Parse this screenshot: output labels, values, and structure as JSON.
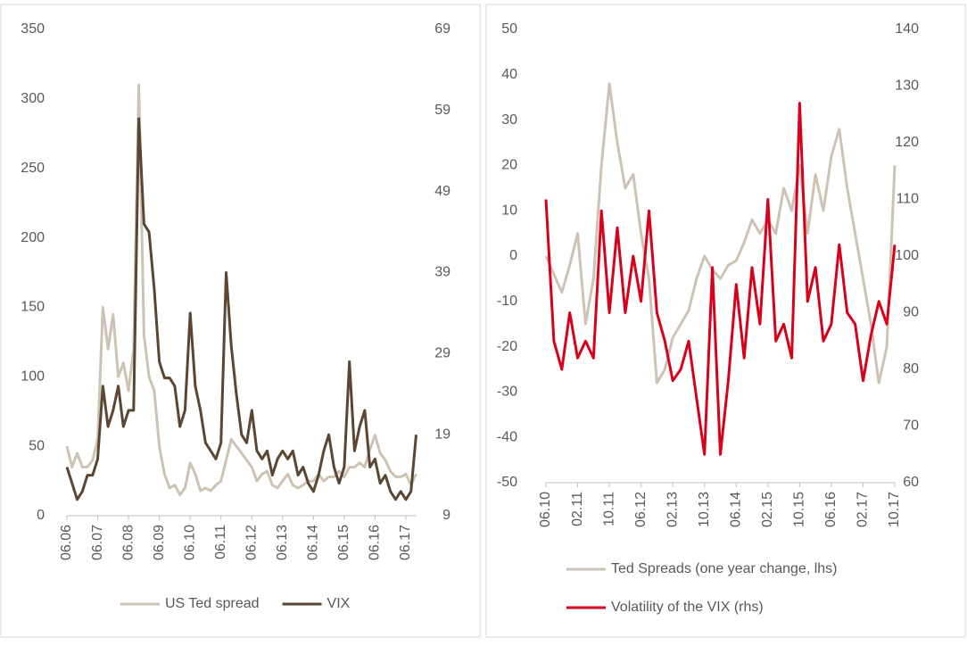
{
  "chart_data": [
    {
      "type": "line",
      "categories": [
        "06.06",
        null,
        null,
        null,
        null,
        null,
        "06.07",
        null,
        null,
        null,
        null,
        null,
        "06.08",
        null,
        null,
        null,
        null,
        null,
        "06.09",
        null,
        null,
        null,
        null,
        null,
        "06.10",
        null,
        null,
        null,
        null,
        null,
        "06.11",
        null,
        null,
        null,
        null,
        null,
        "06.12",
        null,
        null,
        null,
        null,
        null,
        "06.13",
        null,
        null,
        null,
        null,
        null,
        "06.14",
        null,
        null,
        null,
        null,
        null,
        "06.15",
        null,
        null,
        null,
        null,
        null,
        "06.16",
        null,
        null,
        null,
        null,
        null,
        "06.17",
        null,
        null
      ],
      "series": [
        {
          "name": "US Ted spread",
          "color": "#cdc3b5",
          "axis": "y",
          "values": [
            50,
            35,
            45,
            35,
            35,
            40,
            55,
            150,
            120,
            145,
            100,
            110,
            90,
            120,
            310,
            130,
            100,
            90,
            50,
            30,
            20,
            22,
            15,
            20,
            38,
            30,
            18,
            20,
            18,
            22,
            25,
            40,
            55,
            50,
            45,
            40,
            35,
            25,
            30,
            32,
            22,
            20,
            25,
            30,
            22,
            20,
            22,
            25,
            25,
            30,
            25,
            28,
            28,
            32,
            28,
            35,
            35,
            38,
            35,
            48,
            58,
            45,
            40,
            32,
            28,
            28,
            30,
            22,
            30
          ]
        },
        {
          "name": "VIX",
          "color": "#5a4632",
          "axis": "y2",
          "values": [
            15,
            13,
            11,
            12,
            14,
            14,
            16,
            25,
            20,
            22,
            25,
            20,
            22,
            22,
            58,
            45,
            44,
            37,
            28,
            26,
            26,
            25,
            20,
            22,
            34,
            25,
            22,
            18,
            17,
            16,
            18,
            39,
            30,
            24,
            19,
            18,
            22,
            17,
            16,
            17,
            14,
            16,
            17,
            16,
            17,
            14,
            15,
            13,
            12,
            14,
            17,
            19,
            15,
            13,
            15,
            28,
            17,
            20,
            22,
            15,
            16,
            13,
            14,
            12,
            11,
            12,
            11,
            12,
            19
          ]
        }
      ],
      "ylim": [
        0,
        350
      ],
      "yticks": [
        0,
        50,
        100,
        150,
        200,
        250,
        300,
        350
      ],
      "y2lim": [
        9,
        69
      ],
      "y2ticks": [
        9,
        19,
        29,
        39,
        49,
        59,
        69
      ],
      "legend": "bottom"
    },
    {
      "type": "line",
      "categories": [
        "06.10",
        null,
        null,
        null,
        "02.11",
        null,
        null,
        null,
        "10.11",
        null,
        null,
        null,
        "06.12",
        null,
        null,
        null,
        "02.13",
        null,
        null,
        null,
        "10.13",
        null,
        null,
        null,
        "06.14",
        null,
        null,
        null,
        "02.15",
        null,
        null,
        null,
        "10.15",
        null,
        null,
        null,
        "06.16",
        null,
        null,
        null,
        "02.17",
        null,
        null,
        null,
        "10.17"
      ],
      "series": [
        {
          "name": "Ted Spreads (one year change, lhs)",
          "color": "#cdc3b5",
          "axis": "y",
          "values": [
            0,
            -4,
            -8,
            -2,
            5,
            -15,
            -5,
            20,
            38,
            25,
            15,
            18,
            5,
            -5,
            -28,
            -25,
            -18,
            -15,
            -12,
            -5,
            0,
            -3,
            -5,
            -2,
            -1,
            3,
            8,
            5,
            8,
            5,
            15,
            10,
            20,
            5,
            18,
            10,
            22,
            28,
            15,
            5,
            -5,
            -15,
            -28,
            -20,
            20
          ]
        },
        {
          "name": "Volatility of the VIX (rhs)",
          "color": "#d9001b",
          "axis": "y2",
          "values": [
            110,
            85,
            80,
            90,
            82,
            85,
            82,
            108,
            90,
            105,
            90,
            100,
            92,
            108,
            90,
            85,
            78,
            80,
            85,
            75,
            65,
            98,
            65,
            78,
            95,
            82,
            98,
            88,
            110,
            85,
            88,
            82,
            127,
            92,
            98,
            85,
            88,
            102,
            90,
            88,
            78,
            86,
            92,
            88,
            102
          ]
        }
      ],
      "ylim": [
        -50,
        50
      ],
      "yticks": [
        -50,
        -40,
        -30,
        -20,
        -10,
        0,
        10,
        20,
        30,
        40,
        50
      ],
      "y2lim": [
        60,
        140
      ],
      "y2ticks": [
        60,
        70,
        80,
        90,
        100,
        110,
        120,
        130,
        140
      ],
      "legend": "bottom"
    }
  ]
}
